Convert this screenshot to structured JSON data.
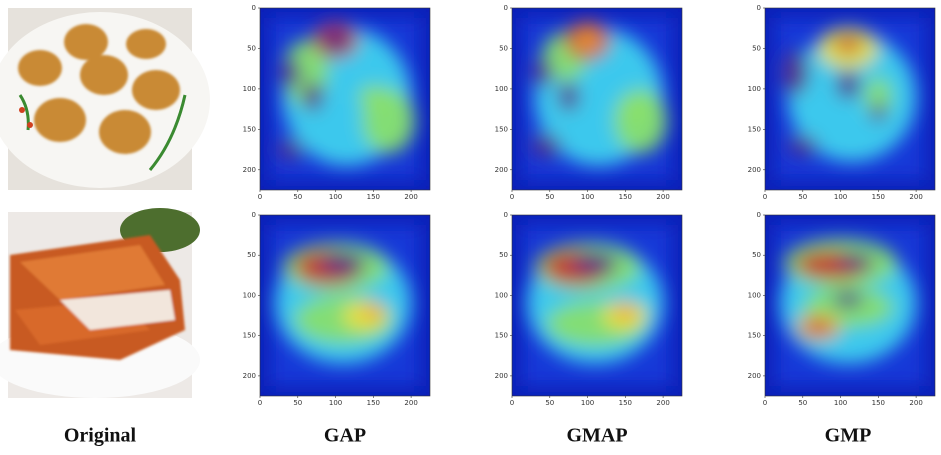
{
  "columns": [
    "Original",
    "GAP",
    "GMAP",
    "GMP"
  ],
  "heatmap_axes": {
    "xticks": [
      0,
      50,
      100,
      150,
      200
    ],
    "yticks": [
      0,
      50,
      100,
      150,
      200
    ],
    "extent": 225
  }
}
